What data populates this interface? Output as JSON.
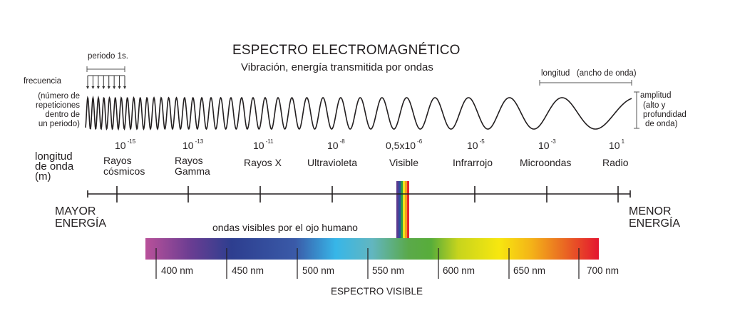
{
  "header": {
    "title": "ESPECTRO ELECTROMAGNÉTICO",
    "subtitle": "Vibración, energía transmitida por ondas"
  },
  "wave_annotations": {
    "period": "periodo 1s.",
    "frequency": "frecuencia",
    "frequency_note": [
      "(número de",
      "repeticiones",
      "dentro de",
      "un periodo)"
    ],
    "wavelength": "longitud   (ancho de onda)",
    "amplitude": "amplitud",
    "amplitude_note": [
      "(alto y",
      "profundidad",
      "de onda)"
    ]
  },
  "axis": {
    "label": [
      "longitud",
      "de onda",
      "(m)"
    ],
    "left_end": [
      "MAYOR",
      "ENERGÍA"
    ],
    "right_end": [
      "MENOR",
      "ENERGÍA"
    ]
  },
  "bands": [
    {
      "base": "10",
      "exp": "-15",
      "name": [
        "Rayos",
        "cósmicos"
      ]
    },
    {
      "base": "10",
      "exp": "-13",
      "name": [
        "Rayos",
        "Gamma"
      ]
    },
    {
      "base": "10",
      "exp": "-11",
      "name": [
        "Rayos X"
      ]
    },
    {
      "base": "10",
      "exp": "-8",
      "name": [
        "Ultravioleta"
      ]
    },
    {
      "base": "0,5x10",
      "exp": "-6",
      "name": [
        "Visible"
      ]
    },
    {
      "base": "10",
      "exp": "-5",
      "name": [
        "Infrarrojo"
      ]
    },
    {
      "base": "10",
      "exp": "-3",
      "name": [
        "Microondas"
      ]
    },
    {
      "base": "10",
      "exp": "1",
      "name": [
        "Radio"
      ]
    }
  ],
  "visible": {
    "caption": "ondas visibles por el ojo humano",
    "title": "ESPECTRO VISIBLE",
    "ticks": [
      "400 nm",
      "450 nm",
      "500 nm",
      "550 nm",
      "600 nm",
      "650 nm",
      "700 nm"
    ],
    "gradient_colors": [
      "#b9519a",
      "#6a3d92",
      "#2d3e8f",
      "#3a5aa8",
      "#37b6e8",
      "#62b6c0",
      "#58ad3a",
      "#c7d41d",
      "#f7e70f",
      "#f4b418",
      "#ea6c22",
      "#e4162f"
    ],
    "rainbow_bar_colors": [
      "#5b3a8f",
      "#2f4da0",
      "#2f9a45",
      "#f2e21b",
      "#f39c1f",
      "#e2262b"
    ]
  }
}
